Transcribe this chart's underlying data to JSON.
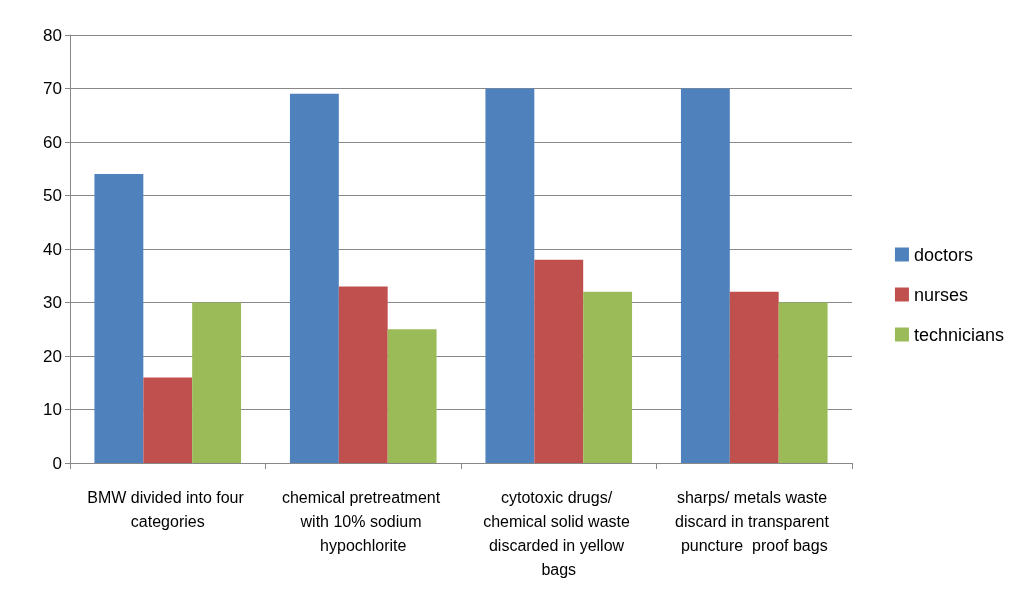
{
  "chart_data": {
    "type": "bar",
    "categories": [
      "BMW divided into four categories",
      "chemical pretreatment with 10% sodium hypochlorite",
      "cytotoxic drugs/ chemical solid waste discarded in yellow bags",
      "sharps/ metals waste discard in transparent puncture  proof bags"
    ],
    "series": [
      {
        "name": "doctors",
        "color": "#4f81bd",
        "values": [
          54,
          69,
          70,
          70
        ]
      },
      {
        "name": "nurses",
        "color": "#c0504d",
        "values": [
          16,
          33,
          38,
          32
        ]
      },
      {
        "name": "technicians",
        "color": "#9bbb59",
        "values": [
          30,
          25,
          32,
          30
        ]
      }
    ],
    "ylim": [
      0,
      80
    ],
    "yticks": [
      0,
      10,
      20,
      30,
      40,
      50,
      60,
      70,
      80
    ],
    "grid": "y",
    "legend": "right"
  }
}
